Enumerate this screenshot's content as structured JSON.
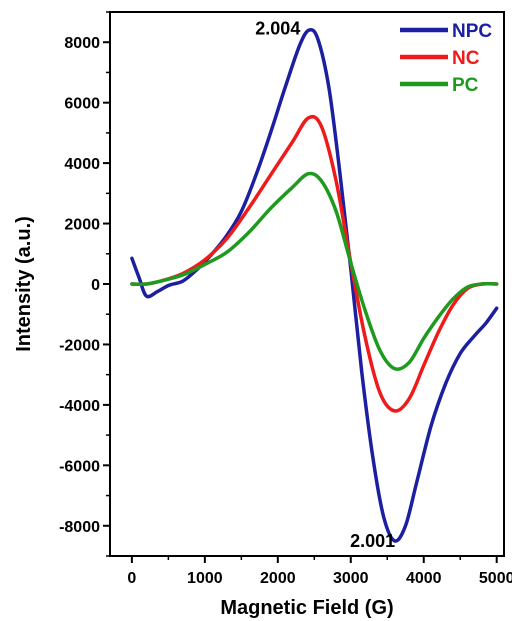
{
  "chart_data": {
    "type": "line",
    "title": "",
    "xlabel": "Magnetic Field (G)",
    "ylabel": "Intensity (a.u.)",
    "xlim": [
      -300,
      5100
    ],
    "ylim": [
      -9000,
      9000
    ],
    "xticks": [
      0,
      1000,
      2000,
      3000,
      4000,
      5000
    ],
    "yticks": [
      -8000,
      -6000,
      -4000,
      -2000,
      0,
      2000,
      4000,
      6000,
      8000
    ],
    "xtick_labels": [
      "0",
      "1000",
      "2000",
      "3000",
      "4000",
      "5000"
    ],
    "ytick_labels": [
      "-8000",
      "-6000",
      "-4000",
      "-2000",
      "0",
      "2000",
      "4000",
      "6000",
      "8000"
    ],
    "grid": false,
    "legend_position": "top-right",
    "series": [
      {
        "name": "NPC",
        "color": "#1c1fa0",
        "points": [
          [
            0,
            850
          ],
          [
            100,
            200
          ],
          [
            200,
            -400
          ],
          [
            350,
            -250
          ],
          [
            500,
            -50
          ],
          [
            700,
            100
          ],
          [
            900,
            500
          ],
          [
            1100,
            1000
          ],
          [
            1300,
            1600
          ],
          [
            1500,
            2400
          ],
          [
            1700,
            3600
          ],
          [
            1900,
            5000
          ],
          [
            2100,
            6500
          ],
          [
            2300,
            7900
          ],
          [
            2430,
            8400
          ],
          [
            2550,
            8100
          ],
          [
            2700,
            6500
          ],
          [
            2850,
            3700
          ],
          [
            3000,
            500
          ],
          [
            3150,
            -2900
          ],
          [
            3300,
            -5700
          ],
          [
            3450,
            -7700
          ],
          [
            3600,
            -8500
          ],
          [
            3750,
            -8000
          ],
          [
            3900,
            -6600
          ],
          [
            4100,
            -4700
          ],
          [
            4300,
            -3300
          ],
          [
            4500,
            -2300
          ],
          [
            4700,
            -1700
          ],
          [
            4850,
            -1300
          ],
          [
            5000,
            -800
          ]
        ]
      },
      {
        "name": "NC",
        "color": "#ee1b1b",
        "points": [
          [
            0,
            0
          ],
          [
            200,
            0
          ],
          [
            400,
            100
          ],
          [
            700,
            350
          ],
          [
            1000,
            800
          ],
          [
            1300,
            1500
          ],
          [
            1600,
            2500
          ],
          [
            1900,
            3600
          ],
          [
            2200,
            4700
          ],
          [
            2420,
            5500
          ],
          [
            2600,
            5200
          ],
          [
            2800,
            3400
          ],
          [
            3000,
            700
          ],
          [
            3200,
            -1800
          ],
          [
            3400,
            -3600
          ],
          [
            3600,
            -4200
          ],
          [
            3800,
            -3800
          ],
          [
            4000,
            -2700
          ],
          [
            4200,
            -1600
          ],
          [
            4400,
            -700
          ],
          [
            4600,
            -150
          ],
          [
            4800,
            0
          ],
          [
            5000,
            0
          ]
        ]
      },
      {
        "name": "PC",
        "color": "#1e9a1e",
        "points": [
          [
            0,
            0
          ],
          [
            200,
            0
          ],
          [
            400,
            100
          ],
          [
            700,
            300
          ],
          [
            1000,
            650
          ],
          [
            1300,
            1050
          ],
          [
            1600,
            1700
          ],
          [
            1900,
            2500
          ],
          [
            2200,
            3200
          ],
          [
            2420,
            3650
          ],
          [
            2600,
            3400
          ],
          [
            2800,
            2400
          ],
          [
            3000,
            700
          ],
          [
            3200,
            -900
          ],
          [
            3400,
            -2200
          ],
          [
            3600,
            -2800
          ],
          [
            3800,
            -2600
          ],
          [
            4000,
            -1800
          ],
          [
            4200,
            -1100
          ],
          [
            4400,
            -500
          ],
          [
            4600,
            -100
          ],
          [
            4800,
            0
          ],
          [
            5000,
            0
          ]
        ]
      }
    ],
    "annotations": [
      {
        "text": "2.004",
        "x": 2000,
        "y": 8450
      },
      {
        "text": "2.001",
        "x": 3300,
        "y": -8500
      }
    ]
  }
}
